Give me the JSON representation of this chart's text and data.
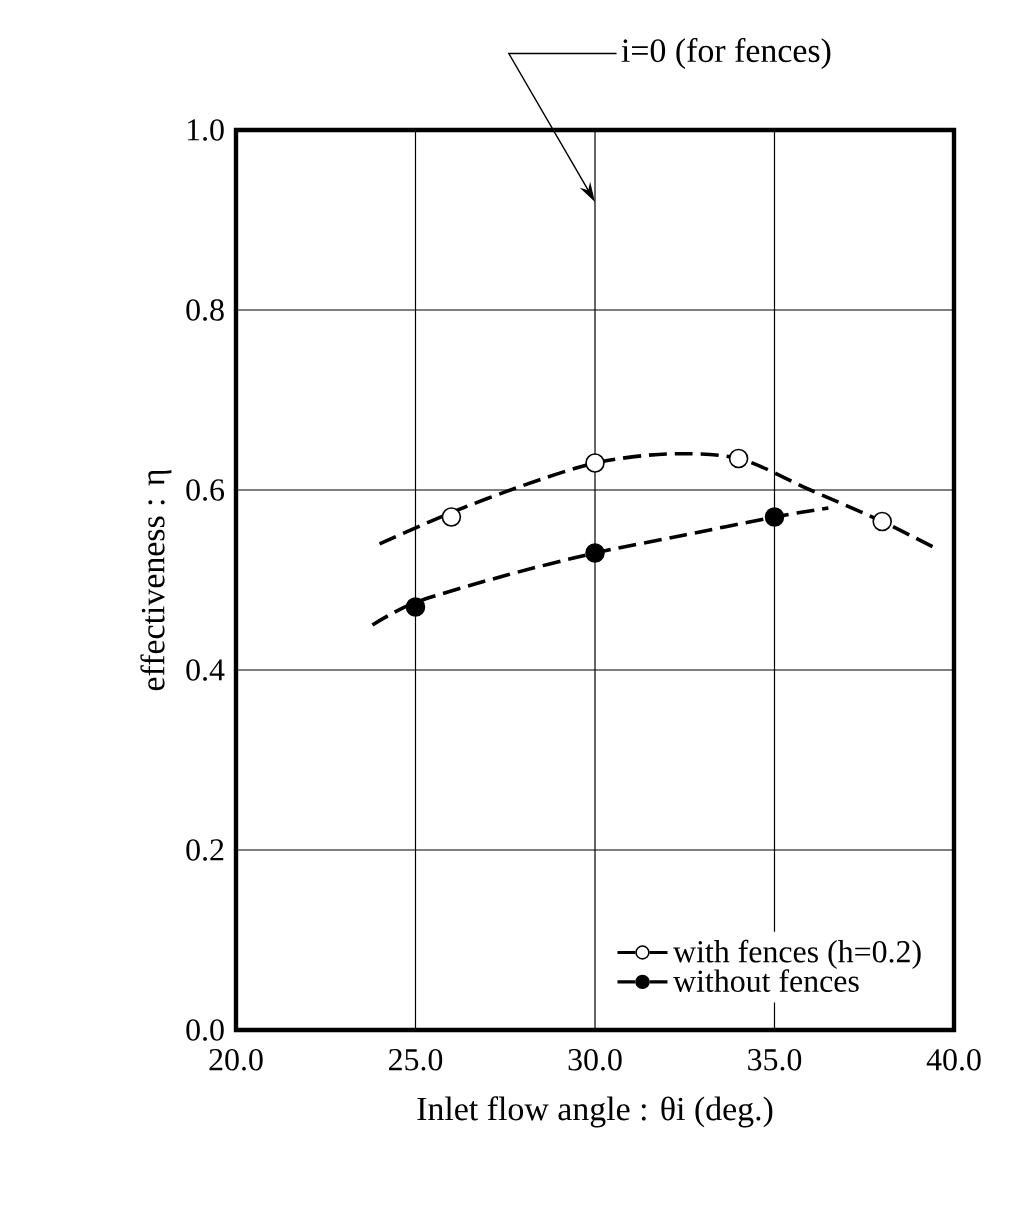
{
  "chart_data": {
    "type": "scatter",
    "xlabel": "Inlet flow angle :  θi (deg.)",
    "ylabel": "effectiveness : η",
    "xlim": [
      20,
      40
    ],
    "ylim": [
      0,
      1
    ],
    "xticks": [
      {
        "value": 20,
        "label": "20.0"
      },
      {
        "value": 25,
        "label": "25.0"
      },
      {
        "value": 30,
        "label": "30.0"
      },
      {
        "value": 35,
        "label": "35.0"
      },
      {
        "value": 40,
        "label": "40.0"
      }
    ],
    "yticks": [
      {
        "value": 0,
        "label": "0.0"
      },
      {
        "value": 0.2,
        "label": "0.2"
      },
      {
        "value": 0.4,
        "label": "0.4"
      },
      {
        "value": 0.6,
        "label": "0.6"
      },
      {
        "value": 0.8,
        "label": "0.8"
      },
      {
        "value": 1,
        "label": "1.0"
      }
    ],
    "grid": true,
    "legend": "bottom right",
    "marker": "circle",
    "series": [
      {
        "name": "with fences (h=0.2)",
        "color": "#ffffff",
        "x": [
          26,
          30,
          34,
          38
        ],
        "values": [
          0.57,
          0.63,
          0.635,
          0.565
        ]
      },
      {
        "name": "without fences",
        "color": "#000000",
        "x": [
          25,
          30,
          35
        ],
        "values": [
          0.47,
          0.53,
          0.57
        ]
      },
      {
        "type": "line",
        "line_style": "dashed",
        "marker": "none",
        "color": "#000000",
        "x": [
          24,
          26,
          28,
          30,
          32,
          34,
          36,
          38,
          39.5
        ],
        "values": [
          0.54,
          0.575,
          0.605,
          0.63,
          0.64,
          0.635,
          0.6,
          0.565,
          0.535
        ]
      },
      {
        "type": "line",
        "line_style": "dashed",
        "marker": "none",
        "color": "#000000",
        "x": [
          23.8,
          25,
          27.5,
          30,
          32.5,
          35,
          36.5
        ],
        "values": [
          0.45,
          0.475,
          0.505,
          0.53,
          0.55,
          0.57,
          0.58
        ]
      }
    ],
    "annotations": [
      "i=0 (for fences)"
    ]
  }
}
